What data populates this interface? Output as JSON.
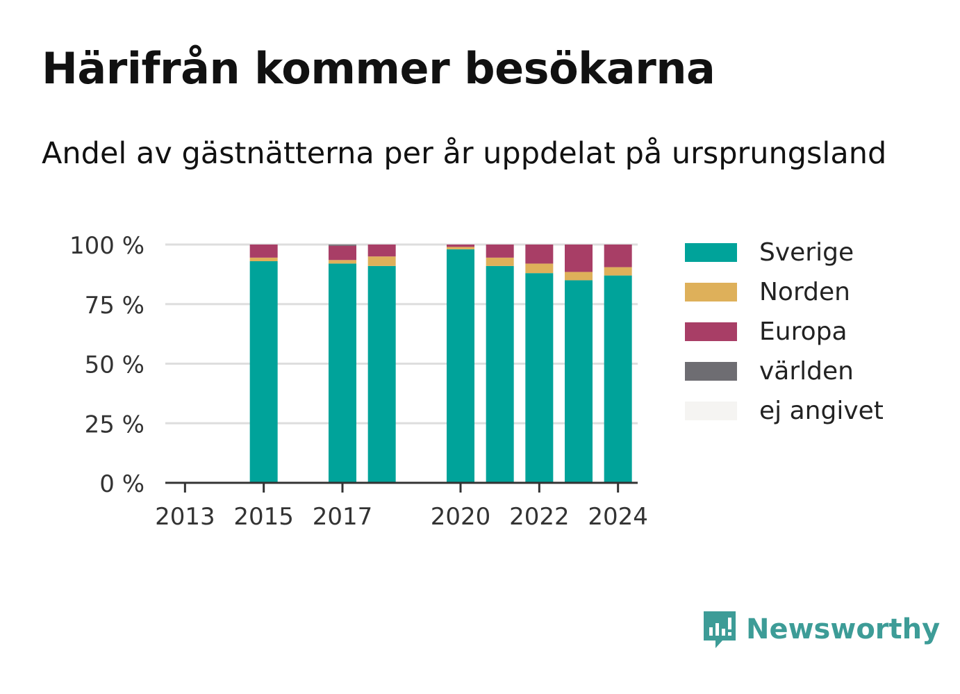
{
  "chart_data": {
    "type": "bar",
    "stacked": true,
    "title": "Härifrån kommer besökarna",
    "subtitle": "Andel av gästnätterna per år uppdelat på ursprungsland",
    "xlabel": "",
    "ylabel": "",
    "categories": [
      "2013",
      "2014",
      "2015",
      "2016",
      "2017",
      "2018",
      "2019",
      "2020",
      "2021",
      "2022",
      "2023",
      "2024"
    ],
    "x_tick_labels": [
      "2013",
      "2015",
      "2017",
      "2020",
      "2022",
      "2024"
    ],
    "y_ticks": [
      0,
      25,
      50,
      75,
      100
    ],
    "y_tick_suffix": " %",
    "ylim": [
      0,
      100
    ],
    "grid": true,
    "legend_position": "right",
    "series": [
      {
        "name": "Sverige",
        "color": "#00a39a",
        "values": [
          null,
          null,
          93,
          null,
          92,
          91,
          null,
          98,
          91,
          88,
          85,
          87
        ]
      },
      {
        "name": "Norden",
        "color": "#deb05a",
        "values": [
          null,
          null,
          1.5,
          null,
          1.5,
          4,
          null,
          1,
          3.5,
          4,
          3.5,
          3.5
        ]
      },
      {
        "name": "Europa",
        "color": "#a83e66",
        "values": [
          null,
          null,
          5.5,
          null,
          6,
          5,
          null,
          1,
          5.5,
          8,
          11.5,
          9.5
        ]
      },
      {
        "name": "världen",
        "color": "#6e6d72",
        "values": [
          null,
          null,
          0,
          null,
          0.5,
          0,
          null,
          0,
          0,
          0,
          0,
          0
        ]
      },
      {
        "name": "ej angivet",
        "color": "#f5f4f2",
        "values": [
          null,
          null,
          0,
          null,
          0,
          0,
          null,
          0,
          0,
          0,
          0,
          0
        ]
      }
    ]
  },
  "brand": {
    "name": "Newsworthy",
    "icon": "newsworthy-logo-icon",
    "color": "#3d9c97"
  }
}
